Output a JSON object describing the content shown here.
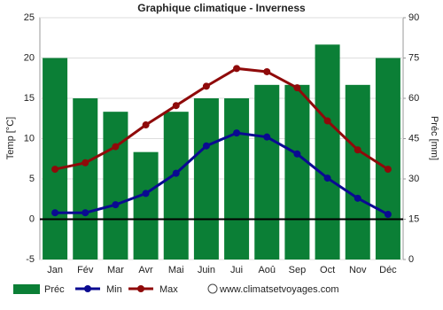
{
  "chart_data": {
    "type": "combo",
    "title": "Graphique climatique - Inverness",
    "y_label": "Temp [°C]",
    "y2_label": "Préc [mm]",
    "categories": [
      "Jan",
      "Fév",
      "Mar",
      "Avr",
      "Mai",
      "Juin",
      "Jui",
      "Aoû",
      "Sep",
      "Oct",
      "Nov",
      "Déc"
    ],
    "series": [
      {
        "name": "Préc",
        "type": "bar",
        "axis": "y2",
        "color": "#0b7f36",
        "values": [
          75,
          60,
          55,
          40,
          55,
          60,
          60,
          65,
          65,
          80,
          65,
          75
        ]
      },
      {
        "name": "Min",
        "type": "line",
        "axis": "y",
        "color": "#0a0a91",
        "values": [
          0.8,
          0.8,
          1.8,
          3.2,
          5.7,
          9.1,
          10.7,
          10.2,
          8.1,
          5.1,
          2.6,
          0.6
        ]
      },
      {
        "name": "Max",
        "type": "line",
        "axis": "y",
        "color": "#8f0a0a",
        "values": [
          6.2,
          7.0,
          9.0,
          11.7,
          14.1,
          16.5,
          18.7,
          18.3,
          16.3,
          12.2,
          8.6,
          6.2
        ]
      }
    ],
    "ylim": [
      -5,
      25
    ],
    "yticks": [
      -5,
      0,
      5,
      10,
      15,
      20,
      25
    ],
    "y2lim": [
      0,
      90
    ],
    "y2ticks": [
      0,
      15,
      30,
      45,
      60,
      75,
      90
    ],
    "grid": true,
    "source": "www.climatsetvoyages.com"
  }
}
